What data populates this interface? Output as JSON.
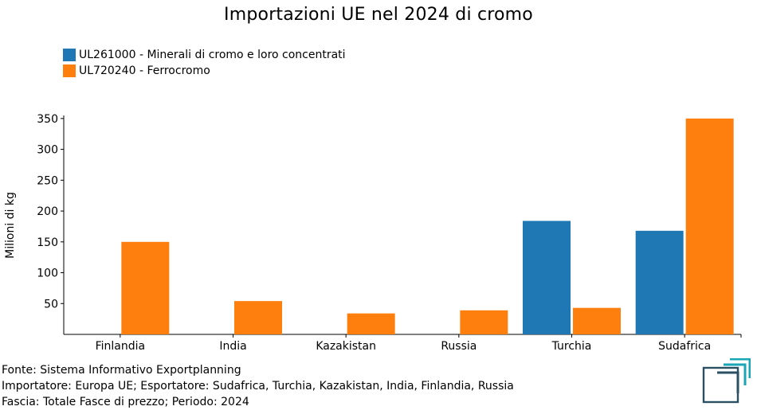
{
  "chart_data": {
    "type": "bar",
    "title": "Importazioni UE nel 2024 di cromo",
    "ylabel": "Milioni di kg",
    "xlabel": "",
    "categories": [
      "Finlandia",
      "India",
      "Kazakistan",
      "Russia",
      "Turchia",
      "Sudafrica"
    ],
    "series": [
      {
        "name": "UL261000 - Minerali di cromo e loro concentrati",
        "color": "#1f77b4",
        "values": [
          0,
          0,
          0,
          0,
          184,
          168
        ]
      },
      {
        "name": "UL720240 - Ferrocromo",
        "color": "#ff7f0e",
        "values": [
          150,
          54,
          34,
          39,
          43,
          350
        ]
      }
    ],
    "ylim": [
      0,
      355
    ],
    "yticks": [
      50,
      100,
      150,
      200,
      250,
      300,
      350
    ],
    "grid": false,
    "legend_position": "top-left"
  },
  "footer": {
    "line1": "Fonte: Sistema Informativo Exportplanning",
    "line2": "Importatore: Europa UE; Esportatore: Sudafrica, Turchia, Kazakistan, India, Finlandia, Russia",
    "line3": "Fascia: Totale Fasce di prezzo; Periodo: 2024"
  },
  "logo": {
    "icon": "exportplanning-logo-icon",
    "colors": [
      "#2b4f63",
      "#1aa6b7"
    ]
  }
}
